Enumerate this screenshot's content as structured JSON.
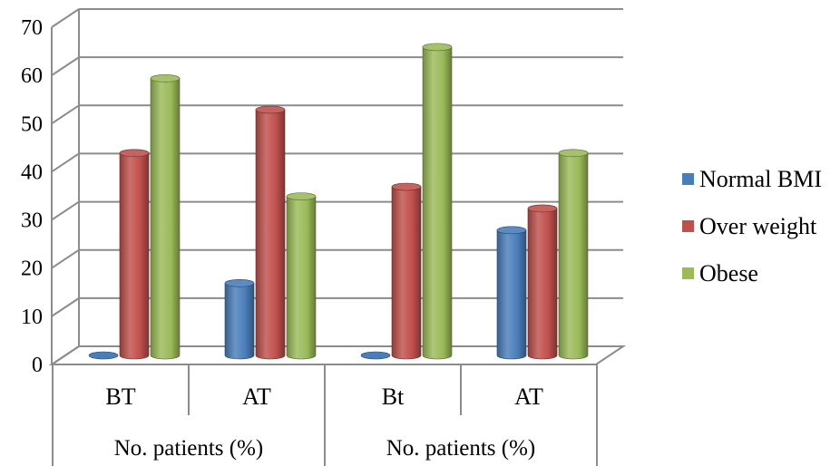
{
  "chart_data": {
    "type": "bar",
    "style": "3d-cylinder",
    "categories": [
      "BT",
      "AT",
      "Bt",
      "AT"
    ],
    "groups": [
      {
        "label": "No. patients (%)",
        "span": [
          0,
          1
        ]
      },
      {
        "label": "No. patients (%)",
        "span": [
          2,
          3
        ]
      }
    ],
    "series": [
      {
        "name": "Normal BMI",
        "color": "#4a7ebb",
        "values": [
          0,
          15,
          0,
          26
        ]
      },
      {
        "name": "Over weight",
        "color": "#c0504d",
        "values": [
          42,
          51,
          35,
          30.5
        ]
      },
      {
        "name": "Obese",
        "color": "#9bbb59",
        "values": [
          57.5,
          33,
          64,
          42
        ]
      }
    ],
    "yticks": [
      "0",
      "10",
      "20",
      "30",
      "40",
      "50",
      "60",
      "70"
    ],
    "ylim": [
      0,
      70
    ],
    "grid": true,
    "legend_position": "right"
  }
}
